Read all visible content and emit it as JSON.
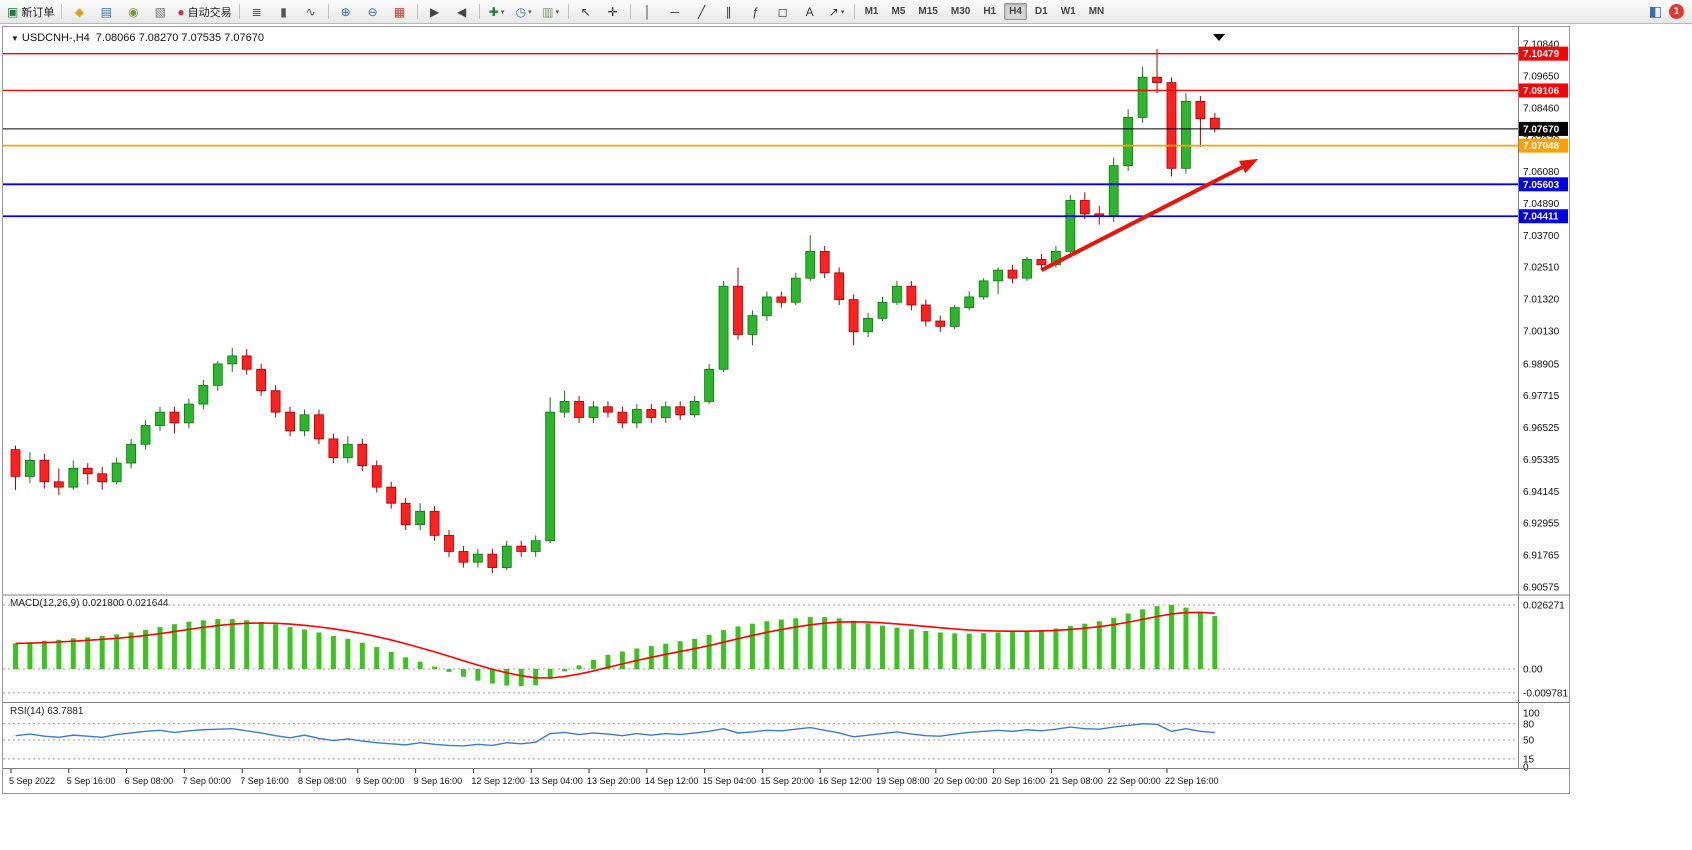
{
  "toolbar": {
    "items": [
      {
        "name": "new-order-button",
        "glyph": "▣",
        "color": "#1a7f37",
        "label": "新订单"
      },
      {
        "sep": true
      },
      {
        "name": "market-watch-button",
        "glyph": "◆",
        "color": "#dca416"
      },
      {
        "name": "data-window-button",
        "glyph": "▤",
        "color": "#2f6fb2"
      },
      {
        "name": "navigator-button",
        "glyph": "◉",
        "color": "#6b9e3f"
      },
      {
        "name": "terminal-button",
        "glyph": "▧",
        "color": "#777777"
      },
      {
        "name": "autotrading-button",
        "glyph": "●",
        "color": "#d32f2f",
        "label": "自动交易"
      },
      {
        "sep": true
      },
      {
        "name": "bar-chart-button",
        "glyph": "≣",
        "color": "#555555"
      },
      {
        "name": "candlestick-chart-button",
        "glyph": "▮",
        "color": "#555555"
      },
      {
        "name": "line-chart-button",
        "glyph": "∿",
        "color": "#555555"
      },
      {
        "sep": true
      },
      {
        "name": "zoom-in-button",
        "glyph": "⊕",
        "color": "#2f6fb2"
      },
      {
        "name": "zoom-out-button",
        "glyph": "⊖",
        "color": "#2f6fb2"
      },
      {
        "name": "tile-windows-button",
        "glyph": "▦",
        "color": "#c0392b"
      },
      {
        "sep": true
      },
      {
        "name": "auto-scroll-button",
        "glyph": "▶",
        "color": "#444444"
      },
      {
        "name": "chart-shift-button",
        "glyph": "◀",
        "color": "#444444"
      },
      {
        "sep": true
      },
      {
        "name": "indicators-button",
        "glyph": "✚",
        "color": "#1a7f37",
        "dropdown": true
      },
      {
        "name": "periods-button",
        "glyph": "◷",
        "color": "#2f6fb2",
        "dropdown": true
      },
      {
        "name": "templates-button",
        "glyph": "▥",
        "color": "#7a9a6a",
        "dropdown": true
      },
      {
        "sep": true
      },
      {
        "name": "cursor-tool-button",
        "glyph": "↖",
        "color": "#333333"
      },
      {
        "name": "crosshair-tool-button",
        "glyph": "✛",
        "color": "#333333"
      },
      {
        "sep": true
      },
      {
        "name": "vertical-line-tool-button",
        "glyph": "│",
        "color": "#333333"
      },
      {
        "name": "horizontal-line-tool-button",
        "glyph": "─",
        "color": "#333333"
      },
      {
        "name": "trendline-tool-button",
        "glyph": "╱",
        "color": "#333333"
      },
      {
        "name": "channel-tool-button",
        "glyph": "∥",
        "color": "#333333"
      },
      {
        "name": "fibonacci-tool-button",
        "glyph": "ƒ",
        "color": "#333333"
      },
      {
        "name": "shapes-tool-button",
        "glyph": "◻",
        "color": "#333333"
      },
      {
        "name": "text-tool-button",
        "glyph": "A",
        "color": "#333333"
      },
      {
        "name": "arrows-tool-button",
        "glyph": "↗",
        "color": "#333333",
        "dropdown": true
      },
      {
        "sep": true
      }
    ],
    "timeframes": [
      "M1",
      "M5",
      "M15",
      "M30",
      "H1",
      "H4",
      "D1",
      "W1",
      "MN"
    ],
    "active_timeframe": "H4"
  },
  "topright": {
    "icon_glyph": "◧",
    "badge": "1"
  },
  "chart": {
    "collapse_icon": "▼",
    "symbol": "USDCNH-,H4",
    "ohlc": "7.08066 7.08270 7.07535 7.07670"
  },
  "chart_data": [
    {
      "type": "candlestick",
      "title": "USDCNH-,H4",
      "ohlc_display": {
        "open": "7.08066",
        "high": "7.08270",
        "low": "7.07535",
        "close": "7.07670"
      },
      "ylim": [
        6.9035,
        7.1125
      ],
      "colors": {
        "bull": "#2DB52D",
        "bear": "#FF2020",
        "bull_border": "#0d7a0d",
        "bear_border": "#a80000"
      },
      "price_axis_ticks": [
        "7.10840",
        "7.09650",
        "7.08460",
        "7.07270",
        "7.06080",
        "7.04890",
        "7.03700",
        "7.02510",
        "7.01320",
        "7.00130",
        "6.98905",
        "6.97715",
        "6.96525",
        "6.95335",
        "6.94145",
        "6.92955",
        "6.91765",
        "6.90575"
      ],
      "x_labels": [
        "5 Sep 2022",
        "5 Sep 16:00",
        "6 Sep 08:00",
        "7 Sep 00:00",
        "7 Sep 16:00",
        "8 Sep 08:00",
        "9 Sep 00:00",
        "9 Sep 16:00",
        "12 Sep 12:00",
        "13 Sep 04:00",
        "13 Sep 20:00",
        "14 Sep 12:00",
        "15 Sep 04:00",
        "15 Sep 20:00",
        "16 Sep 12:00",
        "19 Sep 08:00",
        "20 Sep 00:00",
        "20 Sep 16:00",
        "21 Sep 08:00",
        "22 Sep 00:00",
        "22 Sep 16:00"
      ],
      "label_every_n_candles": 4,
      "hlines": [
        {
          "name": "resistance-line-upper",
          "price": 7.10479,
          "label": "7.10479",
          "color": "#FF0000",
          "width": 1.4
        },
        {
          "name": "resistance-line-lower",
          "price": 7.09106,
          "label": "7.09106",
          "color": "#FF0000",
          "width": 1.4
        },
        {
          "name": "bid-price-line",
          "price": 7.0767,
          "label": "7.07670",
          "color": "#000000",
          "width": 1
        },
        {
          "name": "pivot-line-orange",
          "price": 7.07048,
          "label": "7.07048",
          "color": "#FFA000",
          "width": 1.8
        },
        {
          "name": "support-line-upper",
          "price": 7.05603,
          "label": "7.05603",
          "color": "#0000E0",
          "width": 1.8
        },
        {
          "name": "support-line-lower",
          "price": 7.04411,
          "label": "7.04411",
          "color": "#0000E0",
          "width": 1.8
        }
      ],
      "annotations": [
        {
          "type": "trend-arrow",
          "from": {
            "index": 71,
            "price": 7.024
          },
          "to": {
            "index": 86,
            "price": 7.0655
          },
          "color": "#E8150D"
        }
      ],
      "candles": [
        [
          6.957,
          6.9585,
          6.942,
          6.947
        ],
        [
          6.947,
          6.956,
          6.9445,
          6.953
        ],
        [
          6.953,
          6.9555,
          6.9425,
          6.945
        ],
        [
          6.945,
          6.95,
          6.94,
          6.943
        ],
        [
          6.943,
          6.953,
          6.942,
          6.95
        ],
        [
          6.95,
          6.952,
          6.944,
          6.948
        ],
        [
          6.948,
          6.9505,
          6.942,
          6.945
        ],
        [
          6.945,
          6.954,
          6.944,
          6.952
        ],
        [
          6.952,
          6.961,
          6.95,
          6.959
        ],
        [
          6.959,
          6.968,
          6.957,
          6.966
        ],
        [
          6.966,
          6.973,
          6.964,
          6.971
        ],
        [
          6.971,
          6.973,
          6.963,
          6.967
        ],
        [
          6.967,
          6.976,
          6.965,
          6.974
        ],
        [
          6.974,
          6.983,
          6.972,
          6.981
        ],
        [
          6.981,
          6.99,
          6.979,
          6.989
        ],
        [
          6.989,
          6.995,
          6.986,
          6.992
        ],
        [
          6.992,
          6.9945,
          6.985,
          6.987
        ],
        [
          6.987,
          6.989,
          6.977,
          6.979
        ],
        [
          6.979,
          6.981,
          6.969,
          6.971
        ],
        [
          6.971,
          6.973,
          6.962,
          6.964
        ],
        [
          6.964,
          6.972,
          6.962,
          6.97
        ],
        [
          6.97,
          6.972,
          6.959,
          6.961
        ],
        [
          6.961,
          6.963,
          6.952,
          6.954
        ],
        [
          6.954,
          6.962,
          6.952,
          6.959
        ],
        [
          6.959,
          6.961,
          6.949,
          6.951
        ],
        [
          6.951,
          6.953,
          6.941,
          6.943
        ],
        [
          6.943,
          6.945,
          6.935,
          6.937
        ],
        [
          6.937,
          6.939,
          6.927,
          6.929
        ],
        [
          6.929,
          6.937,
          6.927,
          6.934
        ],
        [
          6.934,
          6.936,
          6.923,
          6.925
        ],
        [
          6.925,
          6.927,
          6.917,
          6.919
        ],
        [
          6.919,
          6.921,
          6.913,
          6.915
        ],
        [
          6.915,
          6.92,
          6.913,
          6.918
        ],
        [
          6.918,
          6.92,
          6.911,
          6.913
        ],
        [
          6.913,
          6.923,
          6.912,
          6.921
        ],
        [
          6.921,
          6.923,
          6.917,
          6.919
        ],
        [
          6.919,
          6.925,
          6.917,
          6.923
        ],
        [
          6.923,
          6.9765,
          6.922,
          6.971
        ],
        [
          6.971,
          6.979,
          6.969,
          6.975
        ],
        [
          6.975,
          6.977,
          6.967,
          6.969
        ],
        [
          6.969,
          6.975,
          6.967,
          6.973
        ],
        [
          6.973,
          6.975,
          6.969,
          6.971
        ],
        [
          6.971,
          6.973,
          6.965,
          6.967
        ],
        [
          6.967,
          6.974,
          6.965,
          6.972
        ],
        [
          6.972,
          6.974,
          6.967,
          6.969
        ],
        [
          6.969,
          6.975,
          6.967,
          6.973
        ],
        [
          6.973,
          6.975,
          6.968,
          6.97
        ],
        [
          6.97,
          6.977,
          6.969,
          6.975
        ],
        [
          6.975,
          6.989,
          6.974,
          6.987
        ],
        [
          6.987,
          7.02,
          6.986,
          7.018
        ],
        [
          7.018,
          7.025,
          6.998,
          7.0
        ],
        [
          7.0,
          7.009,
          6.996,
          7.007
        ],
        [
          7.007,
          7.016,
          7.005,
          7.014
        ],
        [
          7.014,
          7.016,
          7.01,
          7.012
        ],
        [
          7.012,
          7.023,
          7.011,
          7.021
        ],
        [
          7.021,
          7.037,
          7.02,
          7.031
        ],
        [
          7.031,
          7.033,
          7.021,
          7.023
        ],
        [
          7.023,
          7.025,
          7.011,
          7.013
        ],
        [
          7.013,
          7.015,
          6.996,
          7.001
        ],
        [
          7.001,
          7.008,
          6.999,
          7.006
        ],
        [
          7.006,
          7.014,
          7.005,
          7.012
        ],
        [
          7.012,
          7.02,
          7.011,
          7.018
        ],
        [
          7.018,
          7.02,
          7.009,
          7.011
        ],
        [
          7.011,
          7.013,
          7.003,
          7.005
        ],
        [
          7.005,
          7.007,
          7.001,
          7.003
        ],
        [
          7.003,
          7.011,
          7.002,
          7.01
        ],
        [
          7.01,
          7.016,
          7.009,
          7.014
        ],
        [
          7.014,
          7.021,
          7.013,
          7.02
        ],
        [
          7.02,
          7.025,
          7.015,
          7.024
        ],
        [
          7.024,
          7.026,
          7.019,
          7.021
        ],
        [
          7.021,
          7.029,
          7.02,
          7.028
        ],
        [
          7.028,
          7.03,
          7.024,
          7.026
        ],
        [
          7.026,
          7.033,
          7.025,
          7.031
        ],
        [
          7.031,
          7.052,
          7.03,
          7.05
        ],
        [
          7.05,
          7.053,
          7.043,
          7.045
        ],
        [
          7.045,
          7.048,
          7.041,
          7.044
        ],
        [
          7.044,
          7.066,
          7.042,
          7.063
        ],
        [
          7.063,
          7.084,
          7.061,
          7.081
        ],
        [
          7.081,
          7.1,
          7.079,
          7.096
        ],
        [
          7.096,
          7.1065,
          7.09,
          7.094
        ],
        [
          7.094,
          7.096,
          7.059,
          7.062
        ],
        [
          7.062,
          7.09,
          7.06,
          7.087
        ],
        [
          7.087,
          7.089,
          7.07,
          7.0805
        ],
        [
          7.0807,
          7.0827,
          7.0754,
          7.0767
        ]
      ]
    },
    {
      "type": "bar",
      "name": "MACD(12,26,9)",
      "label": "MACD(12,26,9) 0.021800 0.021644",
      "main_display": "0.021800",
      "signal_display": "0.021644",
      "colors": {
        "bar": "#3CC41E",
        "signal": "#FF0000"
      },
      "levels": [
        {
          "value": 0.026271,
          "label": "0.026271"
        },
        {
          "value": 0,
          "label": "0.00"
        },
        {
          "value": -0.009781,
          "label": "-0.009781"
        }
      ],
      "values": [
        0.0105,
        0.011,
        0.0116,
        0.012,
        0.0126,
        0.013,
        0.0136,
        0.0142,
        0.015,
        0.016,
        0.0172,
        0.0184,
        0.0194,
        0.02,
        0.0205,
        0.0205,
        0.02,
        0.0193,
        0.0184,
        0.0172,
        0.0162,
        0.015,
        0.0136,
        0.0124,
        0.0108,
        0.009,
        0.007,
        0.0048,
        0.003,
        0.001,
        -0.0012,
        -0.0032,
        -0.0048,
        -0.006,
        -0.0068,
        -0.007,
        -0.0066,
        -0.004,
        -0.001,
        0.0015,
        0.0038,
        0.0058,
        0.0072,
        0.0084,
        0.0094,
        0.0104,
        0.0114,
        0.0124,
        0.014,
        0.016,
        0.0175,
        0.0186,
        0.0196,
        0.0203,
        0.0208,
        0.0213,
        0.0213,
        0.0208,
        0.0198,
        0.0188,
        0.0178,
        0.017,
        0.0163,
        0.0156,
        0.015,
        0.0146,
        0.0145,
        0.0147,
        0.015,
        0.0153,
        0.0156,
        0.016,
        0.0166,
        0.0176,
        0.0186,
        0.0196,
        0.021,
        0.0228,
        0.0245,
        0.0258,
        0.0263,
        0.0252,
        0.0235,
        0.0218
      ]
    },
    {
      "type": "line",
      "name": "RSI(14)",
      "label": "RSI(14) 63.7881",
      "value_display": "63.7881",
      "color": "#3B7BD4",
      "ylim": [
        0,
        100
      ],
      "levels": [
        {
          "value": 100,
          "label": "100",
          "dashed": false
        },
        {
          "value": 80,
          "label": "80",
          "dashed": true
        },
        {
          "value": 50,
          "label": "50",
          "dashed": true
        },
        {
          "value": 15,
          "label": "15",
          "dashed": true
        },
        {
          "value": 0,
          "label": "0",
          "dashed": false
        }
      ],
      "values": [
        58,
        61,
        57,
        55,
        59,
        57,
        55,
        60,
        63,
        66,
        68,
        64,
        67,
        69,
        70,
        71,
        67,
        63,
        58,
        54,
        59,
        53,
        49,
        52,
        48,
        45,
        43,
        41,
        45,
        42,
        40,
        39,
        42,
        40,
        45,
        43,
        46,
        62,
        64,
        60,
        63,
        61,
        58,
        62,
        59,
        62,
        60,
        63,
        66,
        71,
        63,
        65,
        68,
        67,
        70,
        73,
        68,
        63,
        56,
        59,
        62,
        65,
        61,
        58,
        57,
        61,
        64,
        66,
        68,
        66,
        69,
        67,
        70,
        74,
        71,
        70,
        74,
        77,
        80,
        79,
        66,
        71,
        66,
        63.7881
      ]
    }
  ]
}
